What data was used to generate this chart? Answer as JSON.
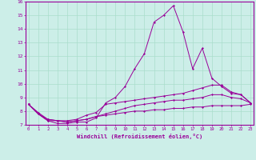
{
  "xlabel": "Windchill (Refroidissement éolien,°C)",
  "ylabel": "",
  "bg_color": "#cceee8",
  "line_color": "#990099",
  "grid_color": "#aaddcc",
  "xmin": 0,
  "xmax": 23,
  "ymin": 7,
  "ymax": 16,
  "yticks": [
    7,
    8,
    9,
    10,
    11,
    12,
    13,
    14,
    15,
    16
  ],
  "xticks": [
    0,
    1,
    2,
    3,
    4,
    5,
    6,
    7,
    8,
    9,
    10,
    11,
    12,
    13,
    14,
    15,
    16,
    17,
    18,
    19,
    20,
    21,
    22,
    23
  ],
  "lines": [
    [
      8.5,
      7.8,
      7.3,
      7.1,
      7.1,
      7.2,
      7.2,
      7.5,
      8.6,
      9.0,
      9.8,
      11.1,
      12.2,
      14.5,
      15.0,
      15.7,
      13.8,
      11.1,
      12.6,
      10.4,
      9.8,
      9.3,
      9.2,
      8.6
    ],
    [
      8.5,
      7.8,
      7.3,
      7.3,
      7.3,
      7.4,
      7.7,
      7.9,
      8.5,
      8.6,
      8.7,
      8.8,
      8.9,
      9.0,
      9.1,
      9.2,
      9.3,
      9.5,
      9.7,
      9.9,
      9.9,
      9.4,
      9.2,
      8.6
    ],
    [
      8.5,
      7.9,
      7.4,
      7.3,
      7.2,
      7.3,
      7.4,
      7.6,
      7.8,
      8.0,
      8.2,
      8.4,
      8.5,
      8.6,
      8.7,
      8.8,
      8.8,
      8.9,
      9.0,
      9.2,
      9.2,
      9.0,
      8.9,
      8.6
    ],
    [
      8.5,
      7.8,
      7.4,
      7.3,
      7.2,
      7.3,
      7.4,
      7.6,
      7.7,
      7.8,
      7.9,
      8.0,
      8.0,
      8.1,
      8.1,
      8.2,
      8.2,
      8.3,
      8.3,
      8.4,
      8.4,
      8.4,
      8.4,
      8.5
    ]
  ]
}
